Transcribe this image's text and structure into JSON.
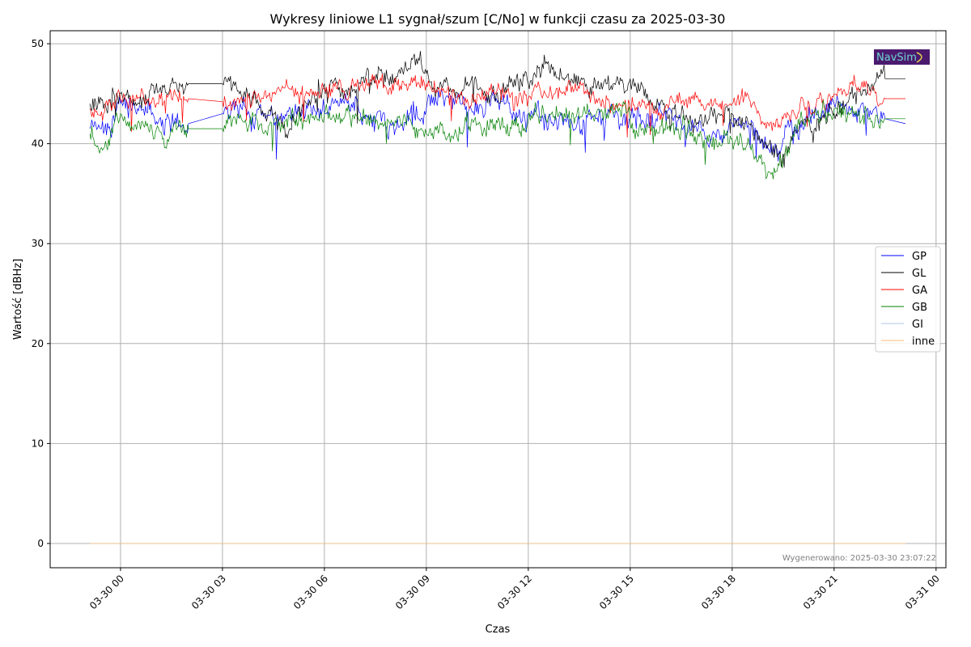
{
  "chart_data": {
    "type": "line",
    "title": "Wykresy liniowe L1 sygnał/szum [C/No] w funkcji czasu za 2025-03-30",
    "xlabel": "Czas",
    "ylabel": "Wartość [dBHz]",
    "x_units": "hours since 2025-03-30 00:00",
    "xlim": [
      -2.07,
      24.29
    ],
    "ylim": [
      -2.43,
      51.3
    ],
    "grid": true,
    "legend_position": "center-right",
    "x_ticks": [
      {
        "value": 0,
        "label": "03-30 00"
      },
      {
        "value": 3,
        "label": "03-30 03"
      },
      {
        "value": 6,
        "label": "03-30 06"
      },
      {
        "value": 9,
        "label": "03-30 09"
      },
      {
        "value": 12,
        "label": "03-30 12"
      },
      {
        "value": 15,
        "label": "03-30 15"
      },
      {
        "value": 18,
        "label": "03-30 18"
      },
      {
        "value": 21,
        "label": "03-30 21"
      },
      {
        "value": 24,
        "label": "03-31 00"
      }
    ],
    "y_ticks": [
      {
        "value": 0,
        "label": "0"
      },
      {
        "value": 10,
        "label": "10"
      },
      {
        "value": 20,
        "label": "20"
      },
      {
        "value": 30,
        "label": "30"
      },
      {
        "value": 40,
        "label": "40"
      },
      {
        "value": 50,
        "label": "50"
      }
    ],
    "series": [
      {
        "name": "GP",
        "color": "#0000ff",
        "noise": 1.3,
        "x": [
          -0.9,
          -0.5,
          0,
          0.5,
          1,
          1.5,
          2,
          3,
          3.5,
          4,
          4.5,
          5,
          5.5,
          6,
          6.5,
          7,
          7.5,
          8,
          8.5,
          9,
          9.5,
          10,
          10.5,
          11,
          11.5,
          12,
          12.5,
          13,
          13.5,
          14,
          14.5,
          15,
          15.5,
          16,
          16.5,
          17,
          17.5,
          18,
          18.5,
          19,
          19.5,
          20,
          20.5,
          21,
          21.5,
          22,
          22.5,
          23.1
        ],
        "y": [
          41.5,
          41,
          44,
          43.5,
          42.5,
          42,
          42,
          43,
          43.5,
          43,
          42.5,
          43.5,
          43.5,
          43,
          44,
          43.5,
          42.5,
          42,
          43,
          43.5,
          44.5,
          44,
          44,
          44.5,
          43,
          43,
          43,
          42.5,
          42,
          42.5,
          43,
          42.5,
          43,
          43,
          42,
          41.5,
          41,
          42,
          41.5,
          39.5,
          40.5,
          42,
          43,
          44,
          43.5,
          43.5,
          42.5,
          42
        ]
      },
      {
        "name": "GL",
        "color": "#000000",
        "noise": 1.2,
        "x": [
          -0.9,
          -0.5,
          0,
          0.5,
          1,
          1.5,
          2,
          3,
          3.5,
          4,
          4.5,
          5,
          5.5,
          6,
          6.5,
          7,
          7.5,
          8,
          8.5,
          9,
          9.5,
          10,
          10.5,
          11,
          11.5,
          12,
          12.5,
          13,
          13.5,
          14,
          14.5,
          15,
          15.5,
          16,
          16.5,
          17,
          17.5,
          18,
          18.5,
          19,
          19.5,
          20,
          20.5,
          21,
          21.5,
          22,
          22.5,
          23.1
        ],
        "y": [
          44,
          43.5,
          45,
          44,
          45,
          46,
          46,
          46,
          45,
          44,
          43,
          41.5,
          44,
          46,
          45,
          46,
          46.5,
          47,
          47.5,
          47,
          46,
          45,
          45.5,
          45,
          46.5,
          46,
          48,
          46.5,
          46,
          45.5,
          46,
          46.5,
          45,
          44,
          43,
          42,
          43,
          43,
          42,
          40,
          39,
          42,
          42.5,
          43,
          45,
          46,
          46.5,
          46.5
        ]
      },
      {
        "name": "GA",
        "color": "#ff0000",
        "noise": 1.0,
        "x": [
          -0.9,
          -0.5,
          0,
          0.5,
          1,
          1.5,
          2,
          3,
          3.5,
          4,
          4.5,
          5,
          5.5,
          6,
          6.5,
          7,
          7.5,
          8,
          8.5,
          9,
          9.5,
          10,
          10.5,
          11,
          11.5,
          12,
          12.5,
          13,
          13.5,
          14,
          14.5,
          15,
          15.5,
          16,
          16.5,
          17,
          17.5,
          18,
          18.5,
          19,
          19.5,
          20,
          20.5,
          21,
          21.5,
          22,
          22.5,
          23.1
        ],
        "y": [
          43.5,
          43,
          44.5,
          44.5,
          44,
          44.5,
          44.5,
          44.2,
          44,
          44.5,
          45,
          45.5,
          45,
          45.5,
          45.5,
          46,
          46,
          46,
          46,
          46,
          45.5,
          45,
          45,
          45,
          45,
          44.5,
          45,
          45,
          45.5,
          44.5,
          44,
          43.5,
          44,
          43.5,
          44,
          44.5,
          44.5,
          44,
          44.5,
          41.5,
          42.5,
          44,
          44.5,
          45,
          46,
          45,
          44.5,
          44.5
        ]
      },
      {
        "name": "GB",
        "color": "#008000",
        "noise": 1.2,
        "x": [
          -0.9,
          -0.5,
          0,
          0.5,
          1,
          1.5,
          2,
          3,
          3.5,
          4,
          4.5,
          5,
          5.5,
          6,
          6.5,
          7,
          7.5,
          8,
          8.5,
          9,
          9.5,
          10,
          10.5,
          11,
          11.5,
          12,
          12.5,
          13,
          13.5,
          14,
          14.5,
          15,
          15.5,
          16,
          16.5,
          17,
          17.5,
          18,
          18.5,
          19,
          19.5,
          20,
          20.5,
          21,
          21.5,
          22,
          22.5,
          23.1
        ],
        "y": [
          41,
          39.5,
          43,
          42,
          40.5,
          41.5,
          41.5,
          41.5,
          42.5,
          42.5,
          42,
          42.5,
          42.5,
          43,
          42.5,
          42.5,
          42,
          42,
          42.5,
          41,
          41,
          41,
          42,
          42,
          41.5,
          42.5,
          42.5,
          43,
          42.5,
          43,
          43,
          42,
          42,
          41.5,
          41.5,
          41,
          40.5,
          40.5,
          40,
          36.5,
          38.5,
          42.5,
          43,
          43.5,
          43,
          42.5,
          42.5,
          42.5
        ]
      },
      {
        "name": "GI",
        "color": "#aec7e8",
        "noise": 0,
        "x": [
          -0.9,
          23.1
        ],
        "y": [
          0,
          0
        ]
      },
      {
        "name": "inne",
        "color": "#ffbb78",
        "noise": 0,
        "x": [
          -0.9,
          23.1
        ],
        "y": [
          0,
          0
        ]
      }
    ],
    "annotation": "Wygenerowano: 2025-03-30 23:07:22",
    "logo_text": "NavSim"
  }
}
